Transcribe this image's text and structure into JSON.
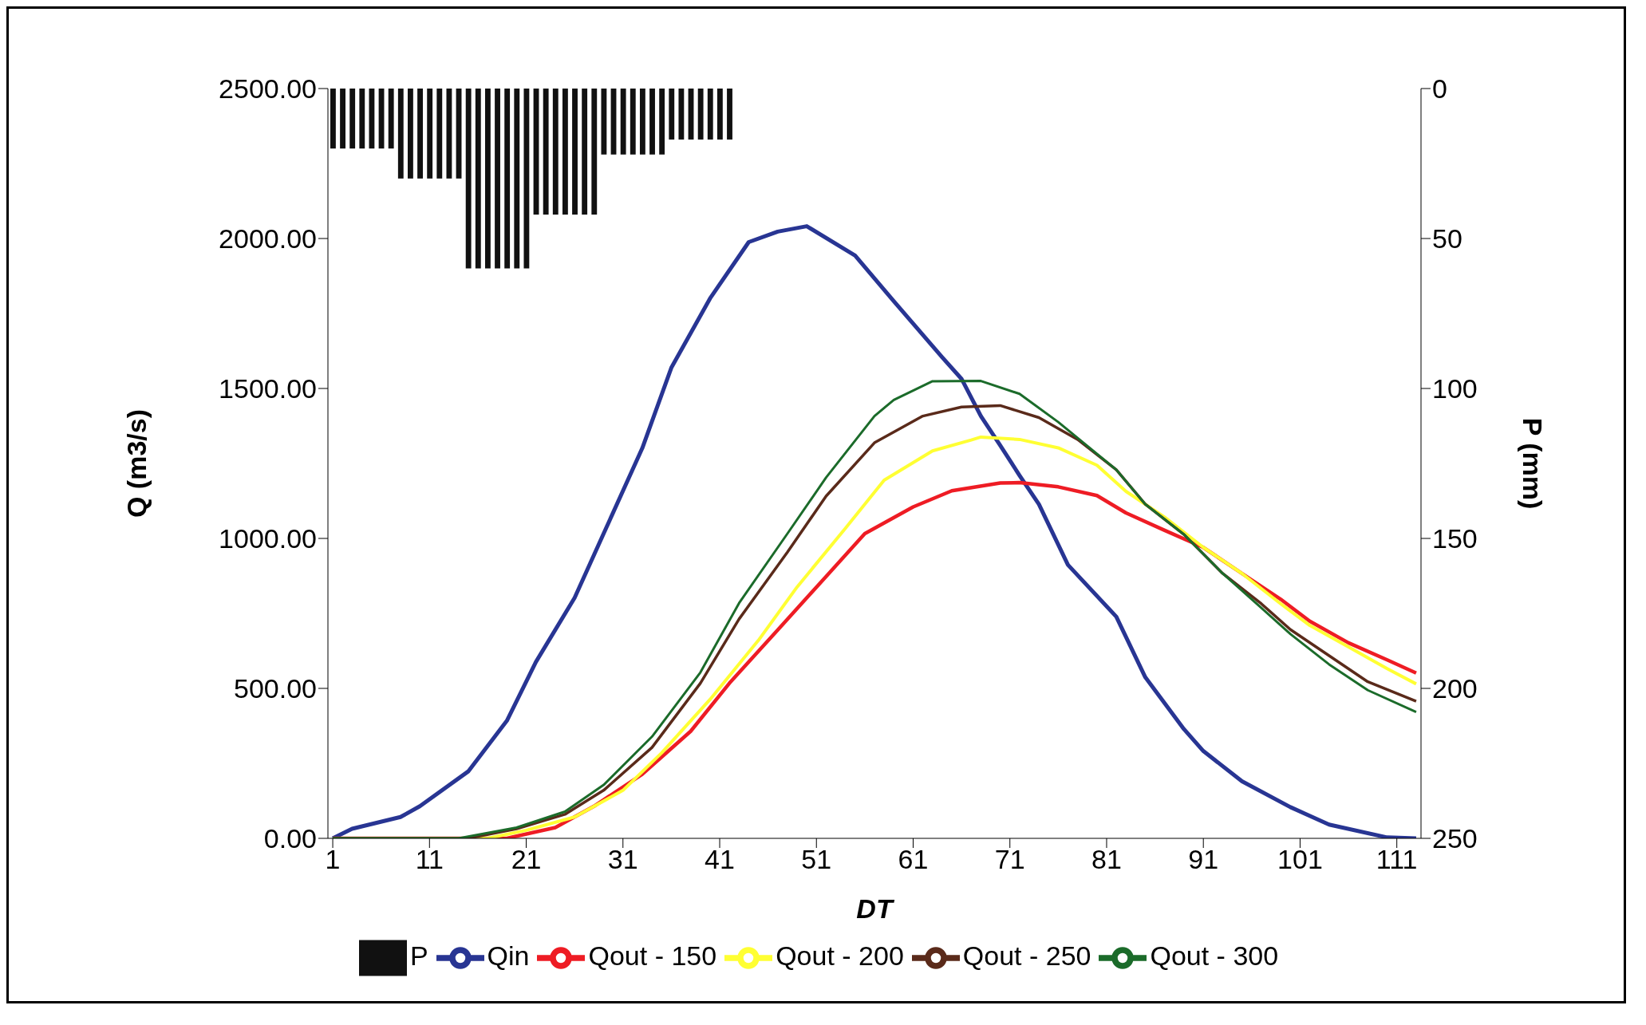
{
  "chart_data": {
    "type": "line",
    "xlabel": "DT",
    "ylabel": "Q (m3/s)",
    "y2label": "P (mm)",
    "xlim": [
      0.5,
      113.5
    ],
    "xticks": [
      1,
      11,
      21,
      31,
      41,
      51,
      61,
      71,
      81,
      91,
      101,
      111
    ],
    "ylim": [
      0,
      2500
    ],
    "yticks": [
      {
        "value": 0,
        "label": "0.00"
      },
      {
        "value": 500,
        "label": "500.00"
      },
      {
        "value": 1000,
        "label": "1000.00"
      },
      {
        "value": 1500,
        "label": "1500.00"
      },
      {
        "value": 2000,
        "label": "2000.00"
      },
      {
        "value": 2500,
        "label": "2500.00"
      }
    ],
    "y2lim": [
      250,
      0
    ],
    "y2ticks": [
      0,
      50,
      100,
      150,
      200,
      250
    ],
    "grid": false,
    "legend": "bottom",
    "marker": "none",
    "line_style": "solid",
    "series": [
      {
        "name": "P",
        "type": "bar",
        "axis": "y2",
        "color": "#111111",
        "x": [
          1,
          2,
          3,
          4,
          5,
          6,
          7,
          8,
          9,
          10,
          11,
          12,
          13,
          14,
          15,
          16,
          17,
          18,
          19,
          20,
          21,
          22,
          23,
          24,
          25,
          26,
          27,
          28,
          29,
          30,
          31,
          32,
          33,
          34,
          35,
          36,
          37,
          38,
          39,
          40,
          41,
          42
        ],
        "values": [
          20,
          20,
          20,
          20,
          20,
          20,
          20,
          30,
          30,
          30,
          30,
          30,
          30,
          30,
          60,
          60,
          60,
          60,
          60,
          60,
          60,
          42,
          42,
          42,
          42,
          42,
          42,
          42,
          22,
          22,
          22,
          22,
          22,
          22,
          22,
          17,
          17,
          17,
          17,
          17,
          17,
          17
        ]
      },
      {
        "name": "Qin",
        "color": "#283593",
        "x": [
          1,
          3,
          8,
          10,
          15,
          19,
          22,
          26,
          29,
          33,
          36,
          40,
          44,
          47,
          50,
          55,
          59,
          64,
          66,
          68,
          70,
          72,
          74,
          77,
          82,
          85,
          89,
          91,
          95,
          100,
          104,
          110,
          113
        ],
        "values": [
          0,
          32,
          71,
          107,
          223,
          392,
          588,
          802,
          1016,
          1301,
          1569,
          1800,
          1988,
          2023,
          2041,
          1943,
          1791,
          1604,
          1532,
          1408,
          1310,
          1210,
          1114,
          912,
          739,
          537,
          364,
          291,
          190,
          104,
          46,
          3,
          0
        ]
      },
      {
        "name": "Qout - 150",
        "color": "#ee1c24",
        "x": [
          1,
          19,
          24,
          28,
          33,
          38,
          42,
          47,
          52,
          56,
          61,
          65,
          70,
          72,
          76,
          80,
          83,
          87,
          91,
          95,
          99,
          102,
          106,
          110,
          113
        ],
        "values": [
          0,
          0,
          36,
          107,
          214,
          357,
          517,
          695,
          873,
          1016,
          1105,
          1159,
          1185,
          1186,
          1172,
          1143,
          1085,
          1027,
          970,
          883,
          797,
          724,
          652,
          595,
          551
        ]
      },
      {
        "name": "Qout - 200",
        "color": "#ffff33",
        "x": [
          1,
          17,
          21,
          26,
          31,
          35,
          40,
          45,
          49,
          54,
          58,
          63,
          67,
          68,
          72,
          76,
          80,
          83,
          87,
          91,
          95,
          99,
          102,
          106,
          110,
          113
        ],
        "values": [
          0,
          0,
          27,
          71,
          160,
          285,
          463,
          660,
          838,
          1034,
          1194,
          1292,
          1328,
          1338,
          1330,
          1302,
          1244,
          1157,
          1071,
          970,
          883,
          782,
          710,
          638,
          566,
          515
        ]
      },
      {
        "name": "Qout - 250",
        "color": "#5a2a1a",
        "x": [
          1,
          15,
          20,
          25,
          29,
          34,
          39,
          43,
          48,
          52,
          57,
          62,
          66,
          70,
          74,
          78,
          82,
          85,
          89,
          93,
          97,
          100,
          104,
          108,
          113
        ],
        "values": [
          0,
          0,
          32,
          80,
          160,
          303,
          517,
          731,
          954,
          1141,
          1319,
          1408,
          1438,
          1443,
          1403,
          1330,
          1229,
          1114,
          1013,
          883,
          782,
          696,
          609,
          522,
          457
        ]
      },
      {
        "name": "Qout - 300",
        "color": "#1b6b2a",
        "x": [
          1,
          14,
          20,
          25,
          29,
          34,
          39,
          43,
          48,
          52,
          57,
          59,
          63,
          68,
          72,
          76,
          82,
          85,
          89,
          93,
          97,
          100,
          104,
          108,
          113
        ],
        "values": [
          0,
          0,
          36,
          89,
          178,
          339,
          553,
          784,
          1016,
          1203,
          1408,
          1462,
          1524,
          1525,
          1482,
          1388,
          1229,
          1114,
          1013,
          883,
          768,
          681,
          580,
          494,
          421
        ]
      }
    ]
  }
}
